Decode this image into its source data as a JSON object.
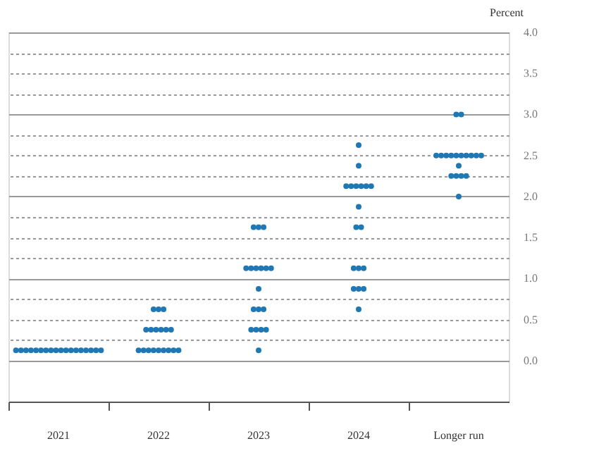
{
  "chart_data": {
    "type": "scatter",
    "ylabel": "Percent",
    "categories": [
      "2021",
      "2022",
      "2023",
      "2024",
      "Longer run"
    ],
    "ylim": [
      -0.5,
      4.0
    ],
    "yticks": [
      {
        "value": 0,
        "label": "0.0"
      },
      {
        "value": 0.25,
        "label": null
      },
      {
        "value": 0.5,
        "label": "0.5"
      },
      {
        "value": 0.75,
        "label": null
      },
      {
        "value": 1,
        "label": "1.0"
      },
      {
        "value": 1.25,
        "label": null
      },
      {
        "value": 1.5,
        "label": "1.5"
      },
      {
        "value": 1.75,
        "label": null
      },
      {
        "value": 2,
        "label": "2.0"
      },
      {
        "value": 2.25,
        "label": null
      },
      {
        "value": 2.5,
        "label": "2.5"
      },
      {
        "value": 2.75,
        "label": null
      },
      {
        "value": 3,
        "label": "3.0"
      },
      {
        "value": 3.25,
        "label": null
      },
      {
        "value": 3.5,
        "label": "3.5"
      },
      {
        "value": 3.75,
        "label": null
      },
      {
        "value": 4,
        "label": "4.0"
      }
    ],
    "grid": "y",
    "marker": "circle",
    "legend": false,
    "series": [
      {
        "color": "#1f78b4",
        "values": [
          0.125,
          0.125,
          0.125,
          0.625,
          2.0
        ]
      },
      {
        "color": "#1f78b4",
        "values": [
          0.125,
          0.125,
          0.375,
          0.875,
          2.25
        ]
      },
      {
        "color": "#1f78b4",
        "values": [
          0.125,
          0.125,
          0.375,
          0.875,
          2.25
        ]
      },
      {
        "color": "#1f78b4",
        "values": [
          0.125,
          0.125,
          0.375,
          0.875,
          2.25
        ]
      },
      {
        "color": "#1f78b4",
        "values": [
          0.125,
          0.125,
          0.375,
          1.125,
          2.25
        ]
      },
      {
        "color": "#1f78b4",
        "values": [
          0.125,
          0.125,
          0.625,
          1.125,
          2.375
        ]
      },
      {
        "color": "#1f78b4",
        "values": [
          0.125,
          0.125,
          0.625,
          1.125,
          2.5
        ]
      },
      {
        "color": "#1f78b4",
        "values": [
          0.125,
          0.125,
          0.625,
          1.625,
          2.5
        ]
      },
      {
        "color": "#1f78b4",
        "values": [
          0.125,
          0.125,
          0.875,
          1.625,
          2.5
        ]
      },
      {
        "color": "#1f78b4",
        "values": [
          0.125,
          0.375,
          1.125,
          1.875,
          2.5
        ]
      },
      {
        "color": "#1f78b4",
        "values": [
          0.125,
          0.375,
          1.125,
          2.125,
          2.5
        ]
      },
      {
        "color": "#1f78b4",
        "values": [
          0.125,
          0.375,
          1.125,
          2.125,
          2.5
        ]
      },
      {
        "color": "#1f78b4",
        "values": [
          0.125,
          0.375,
          1.125,
          2.125,
          2.5
        ]
      },
      {
        "color": "#1f78b4",
        "values": [
          0.125,
          0.375,
          1.125,
          2.125,
          2.5
        ]
      },
      {
        "color": "#1f78b4",
        "values": [
          0.125,
          0.375,
          1.125,
          2.125,
          2.5
        ]
      },
      {
        "color": "#1f78b4",
        "values": [
          0.125,
          0.625,
          1.625,
          2.125,
          2.5
        ]
      },
      {
        "color": "#1f78b4",
        "values": [
          0.125,
          0.625,
          1.625,
          2.375,
          3.0
        ]
      },
      {
        "color": "#1f78b4",
        "values": [
          0.125,
          0.625,
          1.625,
          2.625,
          3.0
        ]
      }
    ]
  }
}
